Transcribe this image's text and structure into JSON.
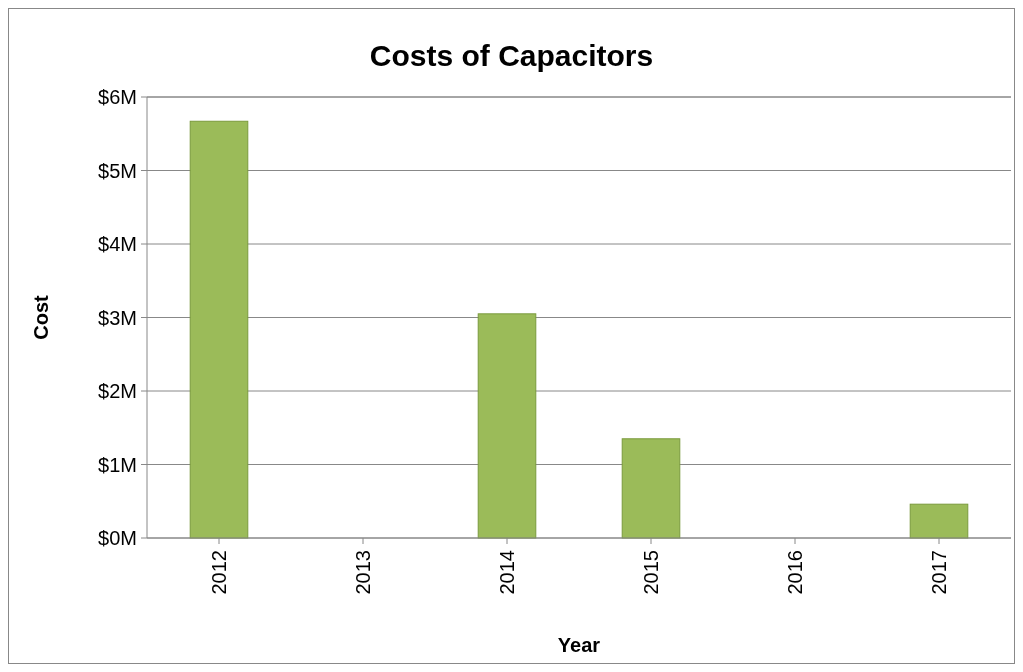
{
  "chart_data": {
    "type": "bar",
    "title": "Costs of Capacitors",
    "xlabel": "Year",
    "ylabel": "Cost",
    "categories": [
      "2012",
      "2013",
      "2014",
      "2015",
      "2016",
      "2017"
    ],
    "values": [
      5.67,
      0,
      3.05,
      1.35,
      0,
      0.46
    ],
    "color": "#9bbb59",
    "ylim": [
      0,
      6
    ],
    "yticks": [
      {
        "value": 0,
        "label": "$0M"
      },
      {
        "value": 1,
        "label": "$1M"
      },
      {
        "value": 2,
        "label": "$2M"
      },
      {
        "value": 3,
        "label": "$3M"
      },
      {
        "value": 4,
        "label": "$4M"
      },
      {
        "value": 5,
        "label": "$5M"
      },
      {
        "value": 6,
        "label": "$6M"
      }
    ],
    "grid": "y"
  }
}
